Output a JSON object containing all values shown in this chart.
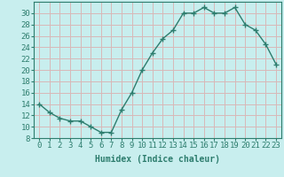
{
  "x": [
    0,
    1,
    2,
    3,
    4,
    5,
    6,
    7,
    8,
    9,
    10,
    11,
    12,
    13,
    14,
    15,
    16,
    17,
    18,
    19,
    20,
    21,
    22,
    23
  ],
  "y": [
    14,
    12.5,
    11.5,
    11,
    11,
    10,
    9,
    9,
    13,
    16,
    20,
    23,
    25.5,
    27,
    30,
    30,
    31,
    30,
    30,
    31,
    28,
    27,
    24.5,
    21
  ],
  "line_color": "#2d7d6e",
  "marker": "+",
  "marker_size": 4,
  "bg_color": "#c8eeee",
  "grid_color_h": "#d8b8b8",
  "grid_color_v": "#d8b8b8",
  "xlabel": "Humidex (Indice chaleur)",
  "xlim": [
    -0.5,
    23.5
  ],
  "ylim": [
    8,
    32
  ],
  "yticks": [
    8,
    10,
    12,
    14,
    16,
    18,
    20,
    22,
    24,
    26,
    28,
    30
  ],
  "xticks": [
    0,
    1,
    2,
    3,
    4,
    5,
    6,
    7,
    8,
    9,
    10,
    11,
    12,
    13,
    14,
    15,
    16,
    17,
    18,
    19,
    20,
    21,
    22,
    23
  ],
  "tick_color": "#2d7d6e",
  "label_fontsize": 6.5,
  "axis_fontsize": 7
}
